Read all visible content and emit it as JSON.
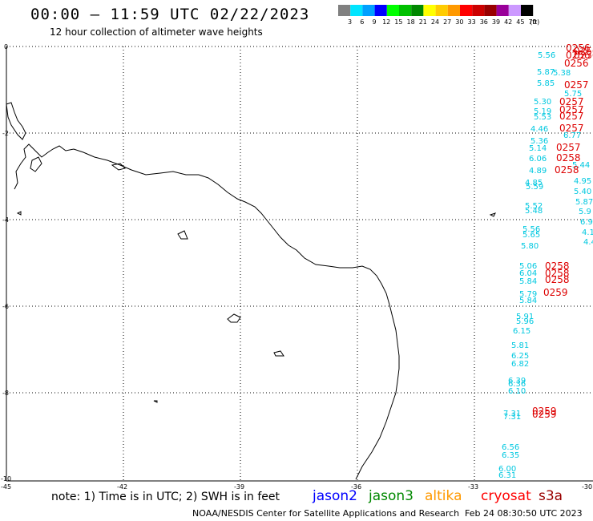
{
  "header": {
    "title": "00:00 – 11:59 UTC 02/22/2023",
    "subtitle": "12 hour collection of altimeter wave heights"
  },
  "colorbar": {
    "unit": "(ft)",
    "bins": [
      {
        "label": "3",
        "color": "#808080"
      },
      {
        "label": "6",
        "color": "#00e5ff"
      },
      {
        "label": "9",
        "color": "#00a0ff"
      },
      {
        "label": "12",
        "color": "#0000ff"
      },
      {
        "label": "15",
        "color": "#00ff00"
      },
      {
        "label": "18",
        "color": "#00c000"
      },
      {
        "label": "21",
        "color": "#008800"
      },
      {
        "label": "24",
        "color": "#ffff00"
      },
      {
        "label": "27",
        "color": "#ffcc00"
      },
      {
        "label": "30",
        "color": "#ff9900"
      },
      {
        "label": "33",
        "color": "#ff0000"
      },
      {
        "label": "36",
        "color": "#cc0000"
      },
      {
        "label": "39",
        "color": "#990000"
      },
      {
        "label": "42",
        "color": "#990099"
      },
      {
        "label": "45",
        "color": "#cc99ff"
      },
      {
        "label": "70",
        "color": "#000000"
      }
    ]
  },
  "axes": {
    "lat_labels": [
      "0",
      "-2",
      "-4",
      "-6",
      "-8",
      "-10"
    ],
    "lon_labels": [
      "-45",
      "-42",
      "-39",
      "-36",
      "-33",
      "-30"
    ]
  },
  "observations": {
    "cyan_values": [
      "5.56",
      "5.87",
      "5.38",
      "5.85",
      "5.30",
      "5.19",
      "5.53",
      "4.46",
      "5.36",
      "5.14",
      "6.06",
      "4.89",
      "4.85",
      "5.59",
      "5.52",
      "5.48",
      "5.56",
      "5.65",
      "5.80",
      "5.06",
      "6.04",
      "5.84",
      "5.79",
      "5.84",
      "5.91",
      "5.96",
      "6.15",
      "5.81",
      "6.25",
      "6.82",
      "6.39",
      "6.36",
      "6.10",
      "7.31",
      "7.31",
      "6.56",
      "6.35",
      "6.00",
      "6.31",
      "5.75",
      "6.77",
      "5.44",
      "4.95",
      "5.40",
      "5.87",
      "5.9",
      "6.9",
      "4.1",
      "4.4"
    ],
    "red_times": [
      "0256",
      "0256",
      "0256",
      "0256",
      "0256",
      "0257",
      "0257",
      "0257",
      "0257",
      "0257",
      "0257",
      "0258",
      "0258",
      "0258",
      "0258",
      "0258",
      "0259",
      "0259",
      "0259"
    ]
  },
  "notes": {
    "text": "note: 1) Time is in UTC; 2) SWH is in feet"
  },
  "satellites": [
    {
      "name": "jason2",
      "color": "#0000ff"
    },
    {
      "name": "jason3",
      "color": "#008800"
    },
    {
      "name": "altika",
      "color": "#ff9900"
    },
    {
      "name": "cryosat",
      "color": "#ff0000"
    },
    {
      "name": "s3a",
      "color": "#990000"
    }
  ],
  "footer": {
    "credit": "NOAA/NESDIS Center for Satellite Applications and Research",
    "timestamp": "Feb 24 08:30:50 UTC 2023"
  }
}
